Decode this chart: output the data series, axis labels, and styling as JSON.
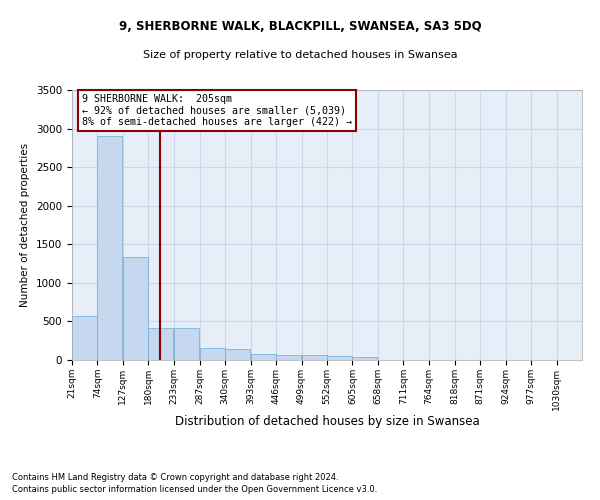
{
  "title_line1": "9, SHERBORNE WALK, BLACKPILL, SWANSEA, SA3 5DQ",
  "title_line2": "Size of property relative to detached houses in Swansea",
  "xlabel": "Distribution of detached houses by size in Swansea",
  "ylabel": "Number of detached properties",
  "footnote1": "Contains HM Land Registry data © Crown copyright and database right 2024.",
  "footnote2": "Contains public sector information licensed under the Open Government Licence v3.0.",
  "bar_color": "#c5d8ef",
  "bar_edge_color": "#6aaad4",
  "grid_color": "#ccd8ea",
  "background_color": "#e8eef8",
  "vline_color": "#8b0000",
  "vline_x": 205,
  "annotation_text": "9 SHERBORNE WALK:  205sqm\n← 92% of detached houses are smaller (5,039)\n8% of semi-detached houses are larger (422) →",
  "annotation_box_color": "#8b0000",
  "bins": [
    21,
    74,
    127,
    180,
    233,
    287,
    340,
    393,
    446,
    499,
    552,
    605,
    658,
    711,
    764,
    818,
    871,
    924,
    977,
    1030,
    1083
  ],
  "bar_heights": [
    570,
    2900,
    1340,
    415,
    415,
    155,
    140,
    80,
    65,
    60,
    50,
    45,
    0,
    0,
    0,
    0,
    0,
    0,
    0,
    0
  ],
  "ylim": [
    0,
    3500
  ],
  "yticks": [
    0,
    500,
    1000,
    1500,
    2000,
    2500,
    3000,
    3500
  ]
}
